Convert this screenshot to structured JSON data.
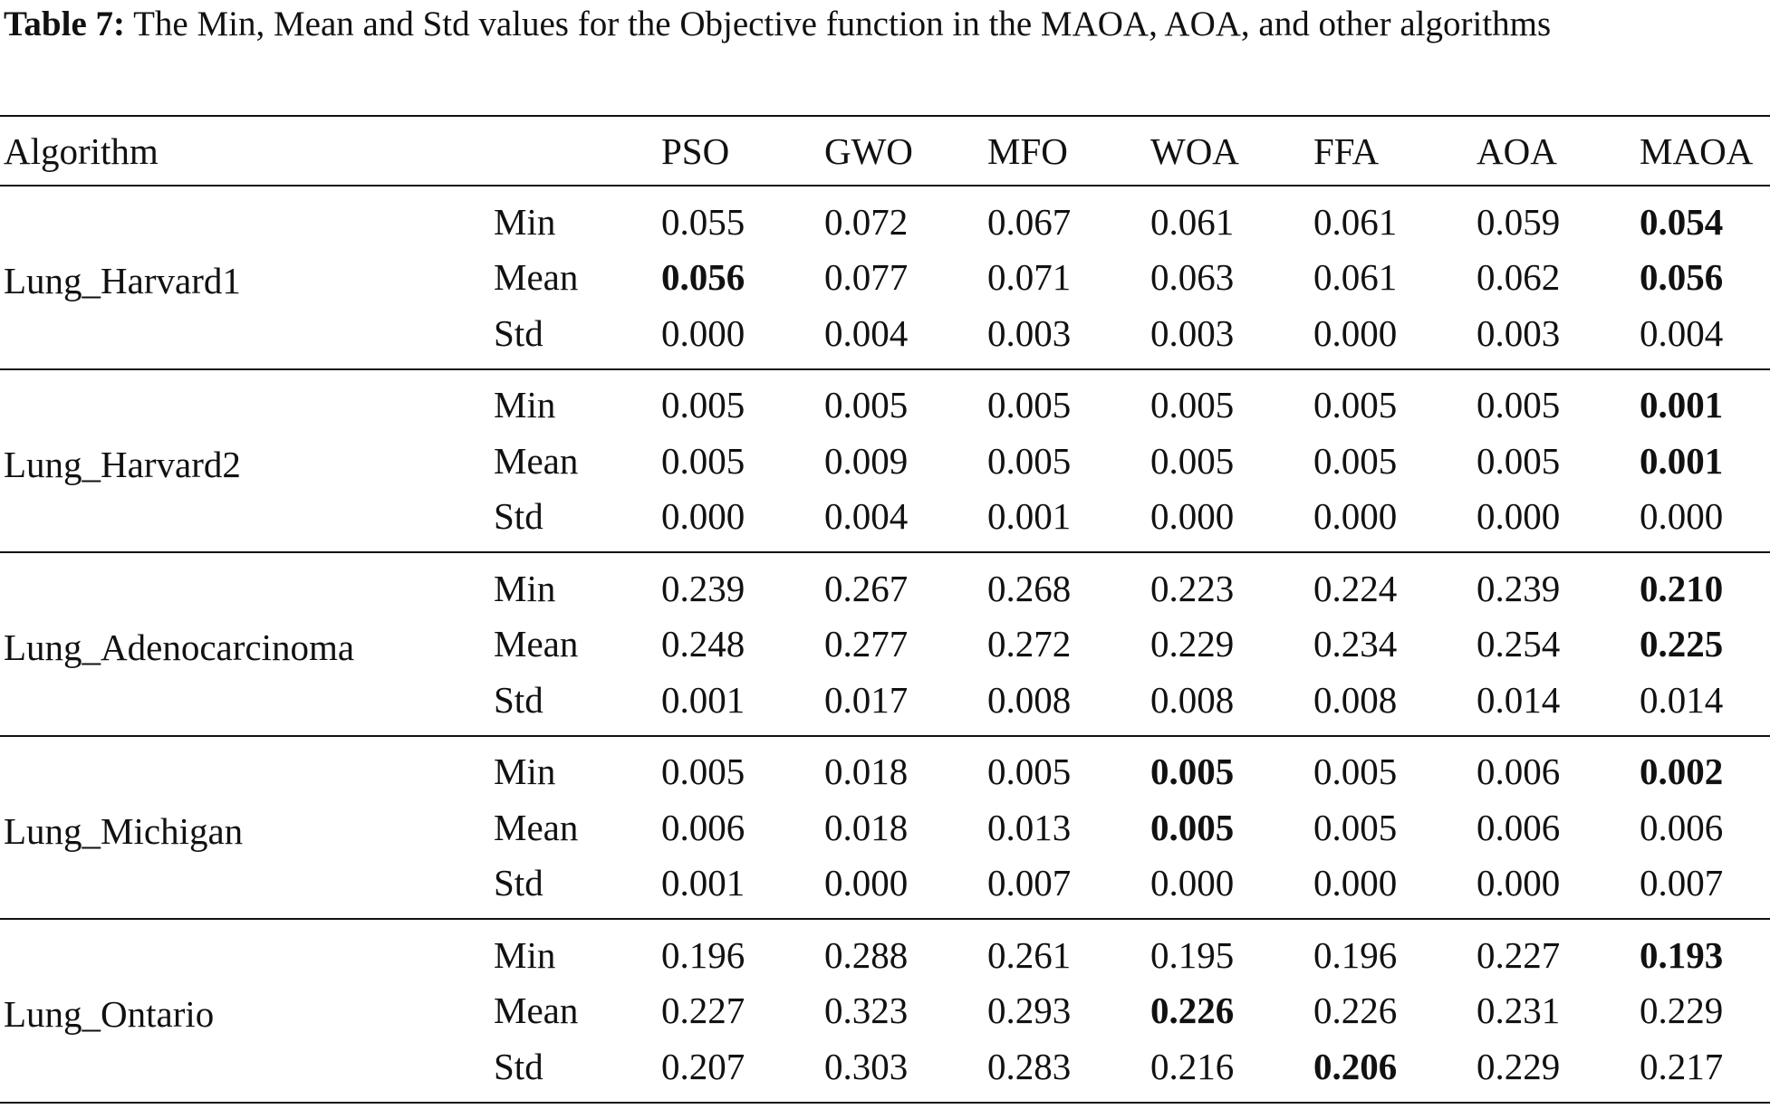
{
  "caption": {
    "label": "Table 7:",
    "text": "The Min, Mean and Std values for the Objective function in the MAOA, AOA, and other algorithms"
  },
  "table": {
    "corner_header": "Algorithm",
    "columns": [
      "PSO",
      "GWO",
      "MFO",
      "WOA",
      "FFA",
      "AOA",
      "MAOA"
    ],
    "datasets": [
      {
        "name": "Lung_Harvard1",
        "rows": [
          {
            "stat": "Min",
            "values": [
              "0.055",
              "0.072",
              "0.067",
              "0.061",
              "0.061",
              "0.059",
              "0.054"
            ],
            "bold": [
              false,
              false,
              false,
              false,
              false,
              false,
              true
            ]
          },
          {
            "stat": "Mean",
            "values": [
              "0.056",
              "0.077",
              "0.071",
              "0.063",
              "0.061",
              "0.062",
              "0.056"
            ],
            "bold": [
              true,
              false,
              false,
              false,
              false,
              false,
              true
            ]
          },
          {
            "stat": "Std",
            "values": [
              "0.000",
              "0.004",
              "0.003",
              "0.003",
              "0.000",
              "0.003",
              "0.004"
            ],
            "bold": [
              false,
              false,
              false,
              false,
              false,
              false,
              false
            ]
          }
        ]
      },
      {
        "name": "Lung_Harvard2",
        "rows": [
          {
            "stat": "Min",
            "values": [
              "0.005",
              "0.005",
              "0.005",
              "0.005",
              "0.005",
              "0.005",
              "0.001"
            ],
            "bold": [
              false,
              false,
              false,
              false,
              false,
              false,
              true
            ]
          },
          {
            "stat": "Mean",
            "values": [
              "0.005",
              "0.009",
              "0.005",
              "0.005",
              "0.005",
              "0.005",
              "0.001"
            ],
            "bold": [
              false,
              false,
              false,
              false,
              false,
              false,
              true
            ]
          },
          {
            "stat": "Std",
            "values": [
              "0.000",
              "0.004",
              "0.001",
              "0.000",
              "0.000",
              "0.000",
              "0.000"
            ],
            "bold": [
              false,
              false,
              false,
              false,
              false,
              false,
              false
            ]
          }
        ]
      },
      {
        "name": "Lung_Adenocarcinoma",
        "rows": [
          {
            "stat": "Min",
            "values": [
              "0.239",
              "0.267",
              "0.268",
              "0.223",
              "0.224",
              "0.239",
              "0.210"
            ],
            "bold": [
              false,
              false,
              false,
              false,
              false,
              false,
              true
            ]
          },
          {
            "stat": "Mean",
            "values": [
              "0.248",
              "0.277",
              "0.272",
              "0.229",
              "0.234",
              "0.254",
              "0.225"
            ],
            "bold": [
              false,
              false,
              false,
              false,
              false,
              false,
              true
            ]
          },
          {
            "stat": "Std",
            "values": [
              "0.001",
              "0.017",
              "0.008",
              "0.008",
              "0.008",
              "0.014",
              "0.014"
            ],
            "bold": [
              false,
              false,
              false,
              false,
              false,
              false,
              false
            ]
          }
        ]
      },
      {
        "name": "Lung_Michigan",
        "rows": [
          {
            "stat": "Min",
            "values": [
              "0.005",
              "0.018",
              "0.005",
              "0.005",
              "0.005",
              "0.006",
              "0.002"
            ],
            "bold": [
              false,
              false,
              false,
              true,
              false,
              false,
              true
            ]
          },
          {
            "stat": "Mean",
            "values": [
              "0.006",
              "0.018",
              "0.013",
              "0.005",
              "0.005",
              "0.006",
              "0.006"
            ],
            "bold": [
              false,
              false,
              false,
              true,
              false,
              false,
              false
            ]
          },
          {
            "stat": "Std",
            "values": [
              "0.001",
              "0.000",
              "0.007",
              "0.000",
              "0.000",
              "0.000",
              "0.007"
            ],
            "bold": [
              false,
              false,
              false,
              false,
              false,
              false,
              false
            ]
          }
        ]
      },
      {
        "name": "Lung_Ontario",
        "rows": [
          {
            "stat": "Min",
            "values": [
              "0.196",
              "0.288",
              "0.261",
              "0.195",
              "0.196",
              "0.227",
              "0.193"
            ],
            "bold": [
              false,
              false,
              false,
              false,
              false,
              false,
              true
            ]
          },
          {
            "stat": "Mean",
            "values": [
              "0.227",
              "0.323",
              "0.293",
              "0.226",
              "0.226",
              "0.231",
              "0.229"
            ],
            "bold": [
              false,
              false,
              false,
              true,
              false,
              false,
              false
            ]
          },
          {
            "stat": "Std",
            "values": [
              "0.207",
              "0.303",
              "0.283",
              "0.216",
              "0.206",
              "0.229",
              "0.217"
            ],
            "bold": [
              false,
              false,
              false,
              false,
              true,
              false,
              false
            ]
          }
        ]
      }
    ]
  }
}
